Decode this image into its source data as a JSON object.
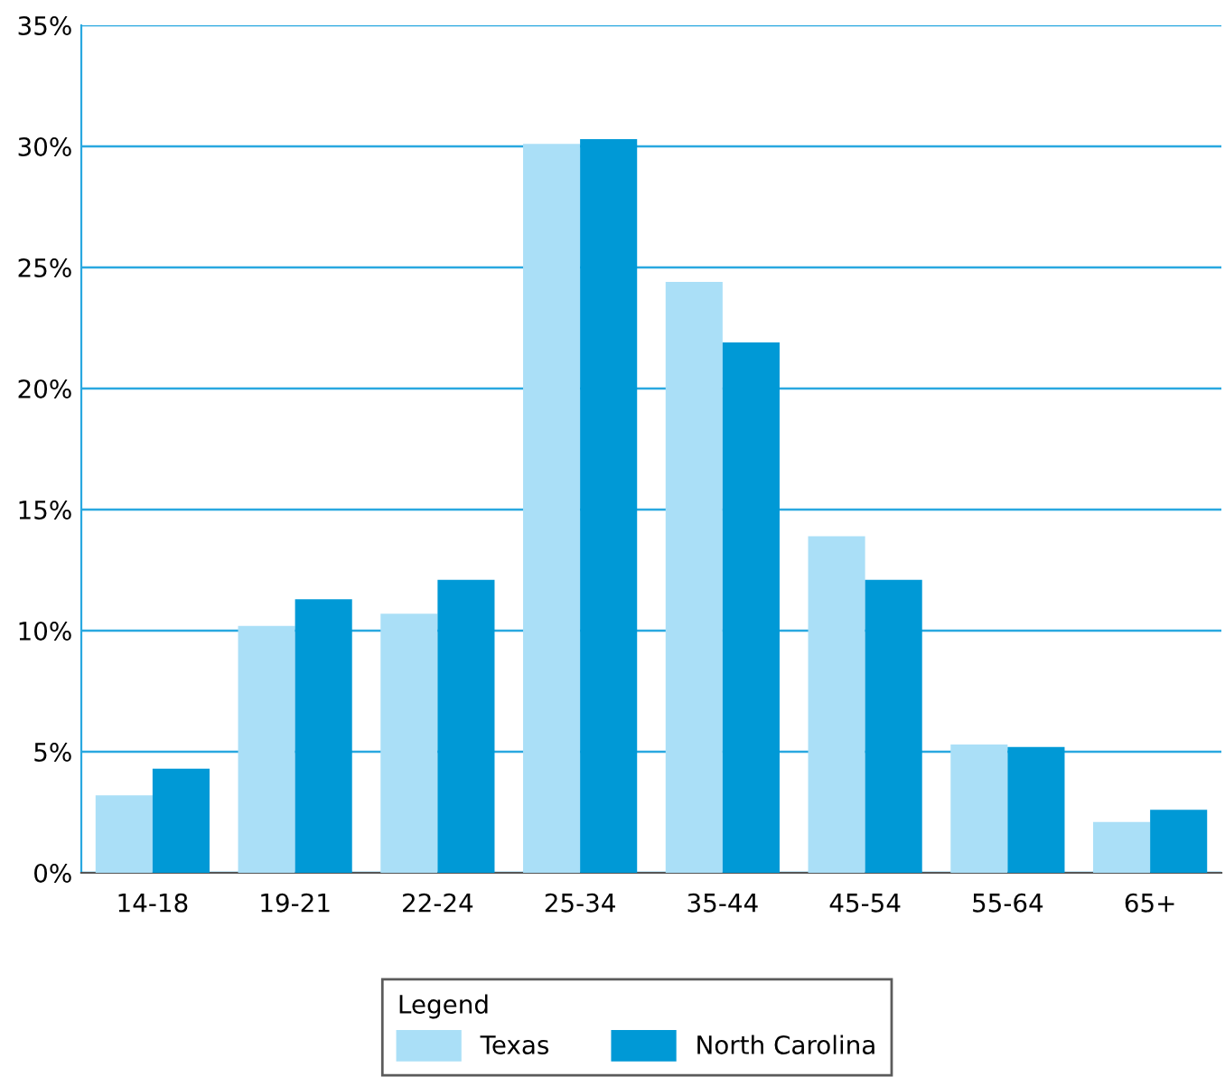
{
  "chart_data": {
    "type": "bar",
    "categories": [
      "14-18",
      "19-21",
      "22-24",
      "25-34",
      "35-44",
      "45-54",
      "55-64",
      "65+"
    ],
    "series": [
      {
        "name": "Texas",
        "color": "#aadff7",
        "values": [
          3.2,
          10.2,
          10.7,
          30.1,
          24.4,
          13.9,
          5.3,
          2.1
        ]
      },
      {
        "name": "North Carolina",
        "color": "#0099d6",
        "values": [
          4.3,
          11.3,
          12.1,
          30.3,
          21.9,
          12.1,
          5.2,
          2.6
        ]
      }
    ],
    "ylim": [
      0,
      35
    ],
    "yticks": [
      {
        "value": 0,
        "label": "0%"
      },
      {
        "value": 5,
        "label": "5%"
      },
      {
        "value": 10,
        "label": "10%"
      },
      {
        "value": 15,
        "label": "15%"
      },
      {
        "value": 20,
        "label": "20%"
      },
      {
        "value": 25,
        "label": "25%"
      },
      {
        "value": 30,
        "label": "30%"
      },
      {
        "value": 35,
        "label": "35%"
      }
    ],
    "grid": "y",
    "legend": "bottom",
    "legend_title": "Legend"
  }
}
